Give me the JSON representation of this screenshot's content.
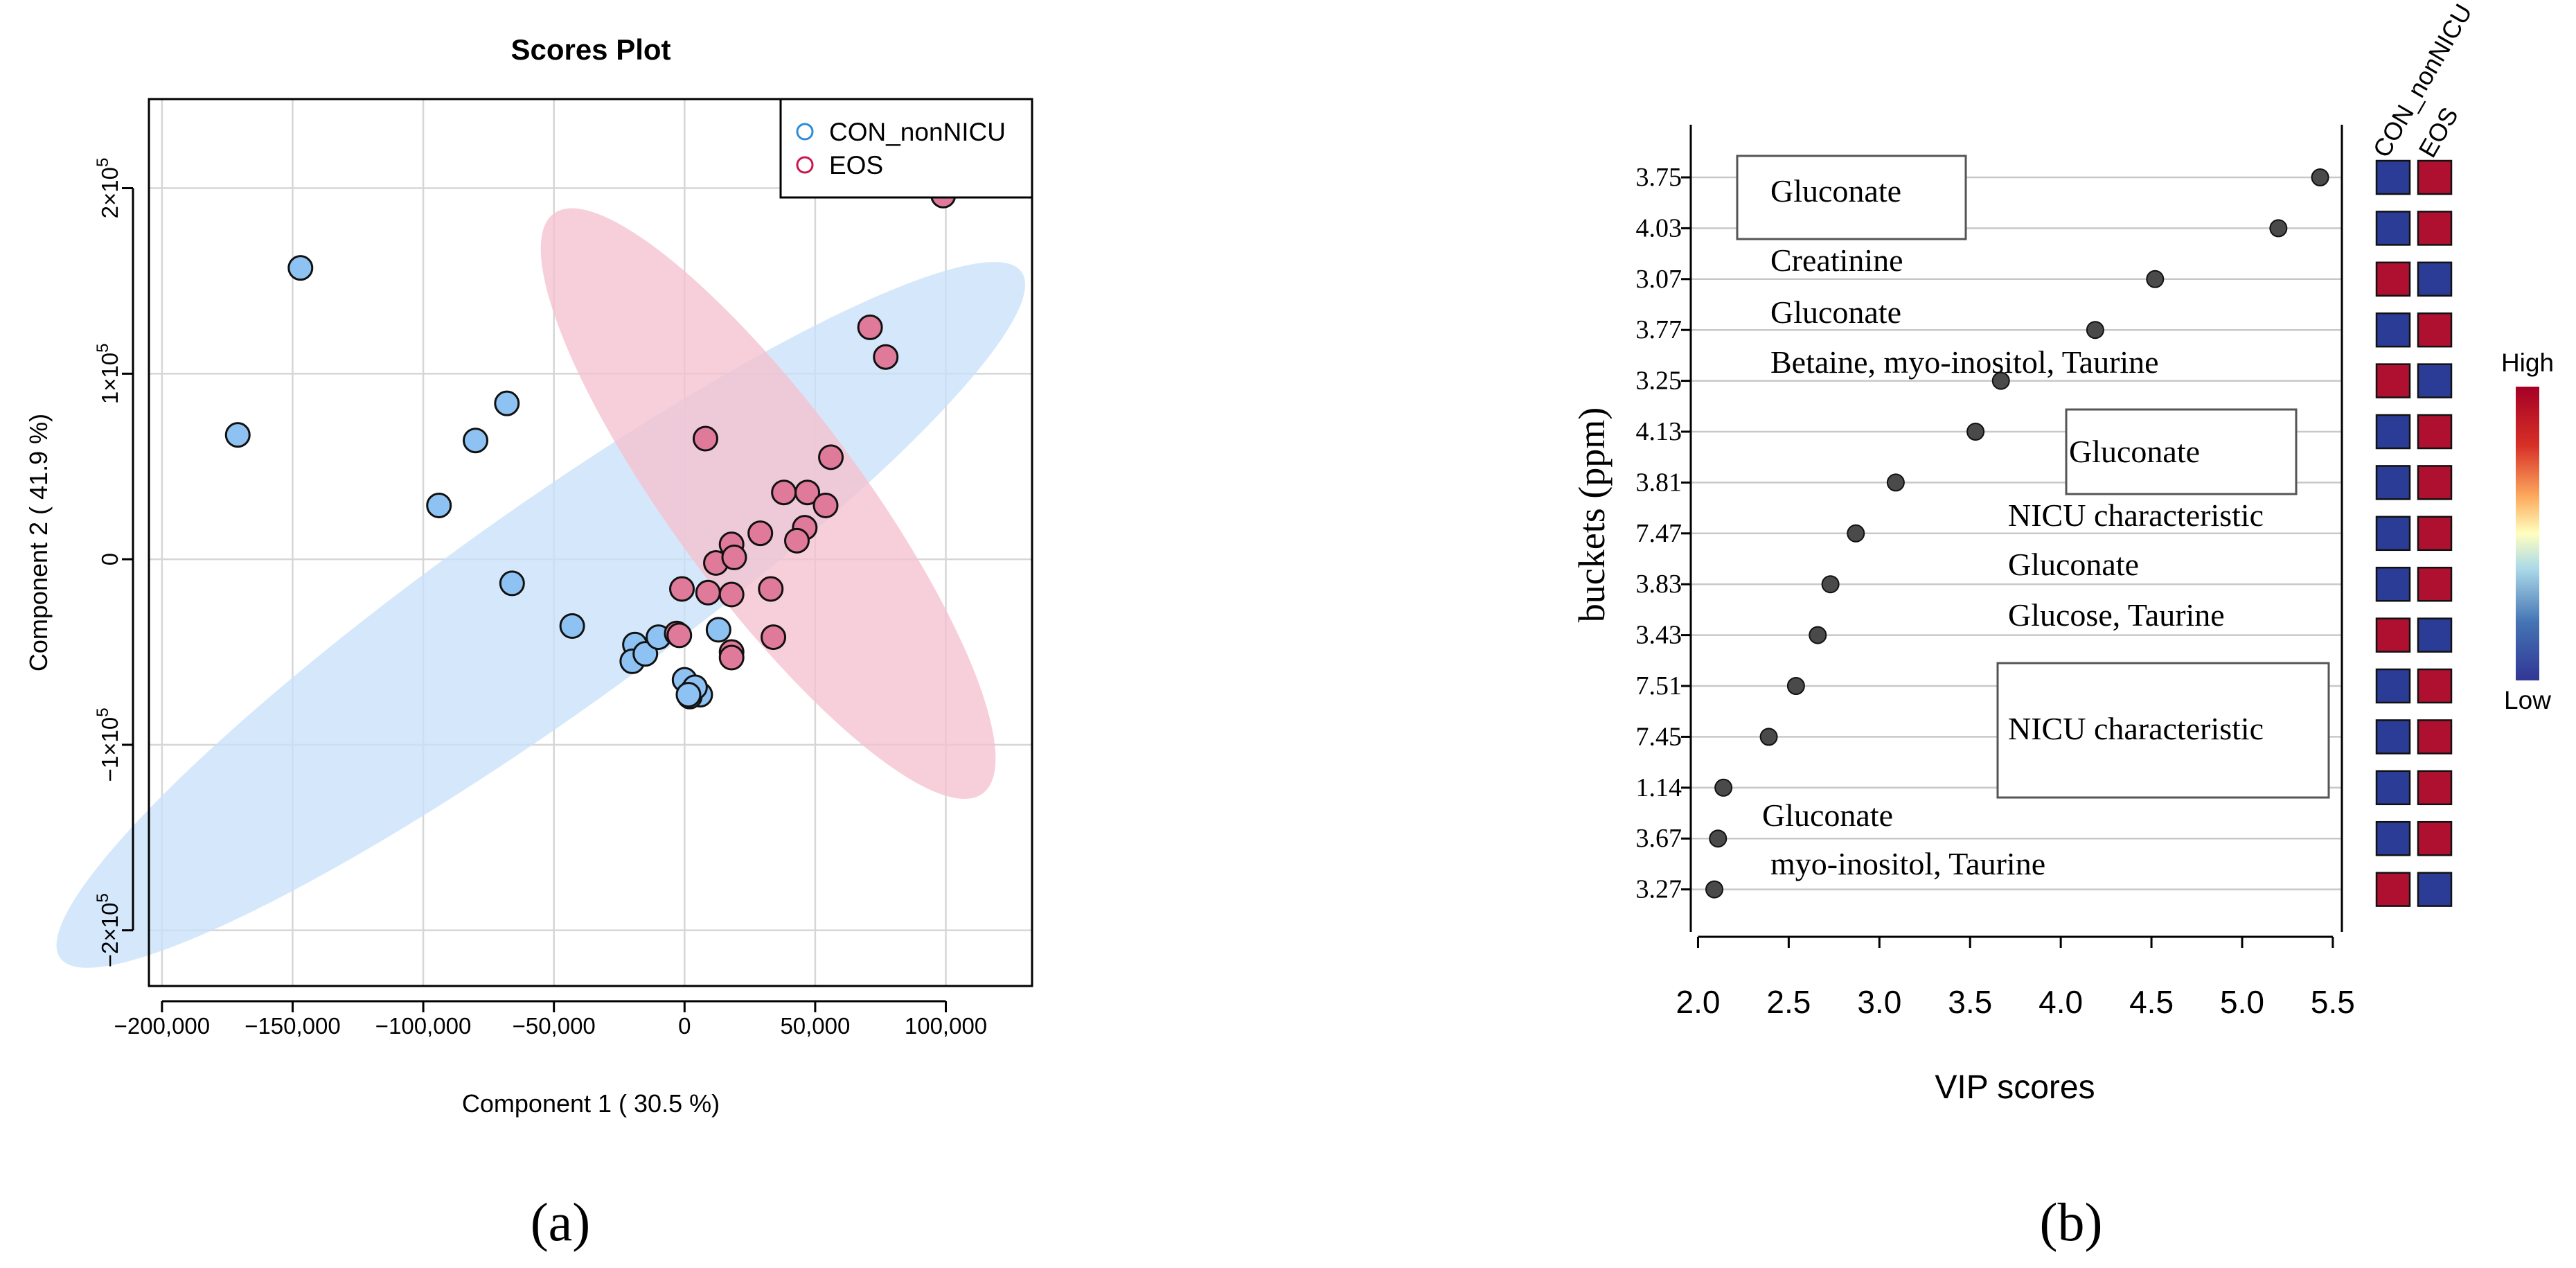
{
  "panel_labels": [
    "(a)",
    "(b)"
  ],
  "colors": {
    "con": "#8EC2F2",
    "eos": "#E07A9A",
    "con_legend": "#2E8BD8",
    "eos_legend": "#C8184E",
    "con_ellipse": "#C9E1FA",
    "eos_ellipse": "#F5C2D0",
    "low": "#2B3C96",
    "high": "#B01030",
    "grid": "#D6D6D6",
    "vip_point": "#4A4A4A"
  },
  "chart_data": [
    {
      "type": "scatter",
      "title": "Scores Plot",
      "xlabel": "Component 1 ( 30.5 %)",
      "ylabel": "Component 2 ( 41.9 %)",
      "xlim": [
        -205000,
        133000
      ],
      "ylim": [
        -230000,
        248000
      ],
      "x_ticks": [
        -200000,
        -150000,
        -100000,
        -50000,
        0,
        50000,
        100000
      ],
      "x_tick_labels": [
        "−200,000",
        "−150,000",
        "−100,000",
        "−50,000",
        "0",
        "50,000",
        "100,000"
      ],
      "y_ticks": [
        -200000,
        -100000,
        0,
        100000,
        200000
      ],
      "y_tick_labels": [
        {
          "base": "−2×10",
          "exp": "5"
        },
        {
          "base": "−1×10",
          "exp": "5"
        },
        {
          "base": "0",
          "exp": ""
        },
        {
          "base": "1×10",
          "exp": "5"
        },
        {
          "base": "2×10",
          "exp": "5"
        }
      ],
      "legend": {
        "position": "top-right",
        "entries": [
          "CON_nonNICU",
          "EOS"
        ]
      },
      "series": [
        {
          "name": "CON_nonNICU",
          "points": [
            [
              -147000,
              157000
            ],
            [
              -171000,
              67000
            ],
            [
              -68000,
              84000
            ],
            [
              -80000,
              64000
            ],
            [
              -94000,
              29000
            ],
            [
              -66000,
              -13000
            ],
            [
              -43000,
              -36000
            ],
            [
              -19000,
              -46000
            ],
            [
              -20000,
              -55000
            ],
            [
              -15000,
              -51000
            ],
            [
              -10000,
              -42000
            ],
            [
              13000,
              -38000
            ],
            [
              0,
              -65000
            ],
            [
              3000,
              -71000
            ],
            [
              6000,
              -73000
            ],
            [
              2000,
              -74000
            ],
            [
              4000,
              -69000
            ],
            [
              1500,
              -73000
            ]
          ]
        },
        {
          "name": "EOS",
          "points": [
            [
              71000,
              125000
            ],
            [
              77000,
              109000
            ],
            [
              8000,
              65000
            ],
            [
              56000,
              55000
            ],
            [
              38000,
              36000
            ],
            [
              47000,
              36000
            ],
            [
              54000,
              29000
            ],
            [
              46000,
              17000
            ],
            [
              29000,
              14000
            ],
            [
              43000,
              10000
            ],
            [
              18000,
              8000
            ],
            [
              12000,
              -2000
            ],
            [
              19000,
              1000
            ],
            [
              -1000,
              -16000
            ],
            [
              9000,
              -18000
            ],
            [
              18000,
              -19000
            ],
            [
              33000,
              -16000
            ],
            [
              -3000,
              -40000
            ],
            [
              34000,
              -42000
            ],
            [
              -2000,
              -41000
            ],
            [
              18000,
              -50000
            ],
            [
              18000,
              -53000
            ],
            [
              99000,
              196000
            ]
          ]
        }
      ],
      "ellipses": [
        {
          "group": "CON_nonNICU",
          "center": [
            -55000,
            -30000
          ],
          "semi_axes": [
            226000,
            39000
          ],
          "angle_deg": -35.5
        },
        {
          "group": "EOS",
          "center": [
            32000,
            30000
          ],
          "semi_axes": [
            138000,
            36000
          ],
          "angle_deg": 53.5
        }
      ]
    },
    {
      "type": "dot",
      "xlabel": "VIP scores",
      "ylabel": "buckets (ppm)",
      "xlim": [
        1.96,
        5.55
      ],
      "x_ticks": [
        2.0,
        2.5,
        3.0,
        3.5,
        4.0,
        4.5,
        5.0,
        5.5
      ],
      "x_tick_labels": [
        "2.0",
        "2.5",
        "3.0",
        "3.5",
        "4.0",
        "4.5",
        "5.0",
        "5.5"
      ],
      "categories": [
        "3.75",
        "4.03",
        "3.07",
        "3.77",
        "3.25",
        "4.13",
        "3.81",
        "7.47",
        "3.83",
        "3.43",
        "7.51",
        "7.45",
        "1.14",
        "3.67",
        "3.27"
      ],
      "values": [
        5.43,
        5.2,
        4.52,
        4.19,
        3.67,
        3.53,
        3.09,
        2.87,
        2.73,
        2.66,
        2.54,
        2.39,
        2.14,
        2.11,
        2.09
      ],
      "heatmap": {
        "columns": [
          "CON_nonNICU",
          "EOS"
        ],
        "cells": [
          [
            "low",
            "high"
          ],
          [
            "low",
            "high"
          ],
          [
            "high",
            "low"
          ],
          [
            "low",
            "high"
          ],
          [
            "high",
            "low"
          ],
          [
            "low",
            "high"
          ],
          [
            "low",
            "high"
          ],
          [
            "low",
            "high"
          ],
          [
            "low",
            "high"
          ],
          [
            "high",
            "low"
          ],
          [
            "low",
            "high"
          ],
          [
            "low",
            "high"
          ],
          [
            "low",
            "high"
          ],
          [
            "low",
            "high"
          ],
          [
            "high",
            "low"
          ]
        ]
      },
      "color_scale": {
        "high_label": "High",
        "low_label": "Low"
      },
      "annotations": [
        {
          "text": "Gluconate",
          "boxed": true,
          "row": 0
        },
        {
          "text": "Creatinine",
          "boxed": false,
          "row": 1
        },
        {
          "text": "Gluconate",
          "boxed": false,
          "row": 2
        },
        {
          "text": "Betaine, myo-inositol, Taurine",
          "boxed": false,
          "row": 3
        },
        {
          "text": "Gluconate",
          "boxed": true,
          "row": 5
        },
        {
          "text": "NICU characteristic",
          "boxed": false,
          "row": 6
        },
        {
          "text": "Gluconate",
          "boxed": false,
          "row": 7
        },
        {
          "text": "Glucose, Taurine",
          "boxed": false,
          "row": 8
        },
        {
          "text": "NICU characteristic",
          "boxed": true,
          "row": 11
        },
        {
          "text": "Gluconate",
          "boxed": false,
          "row": 12
        },
        {
          "text": "myo-inositol, Taurine",
          "boxed": false,
          "row": 13
        }
      ]
    }
  ]
}
